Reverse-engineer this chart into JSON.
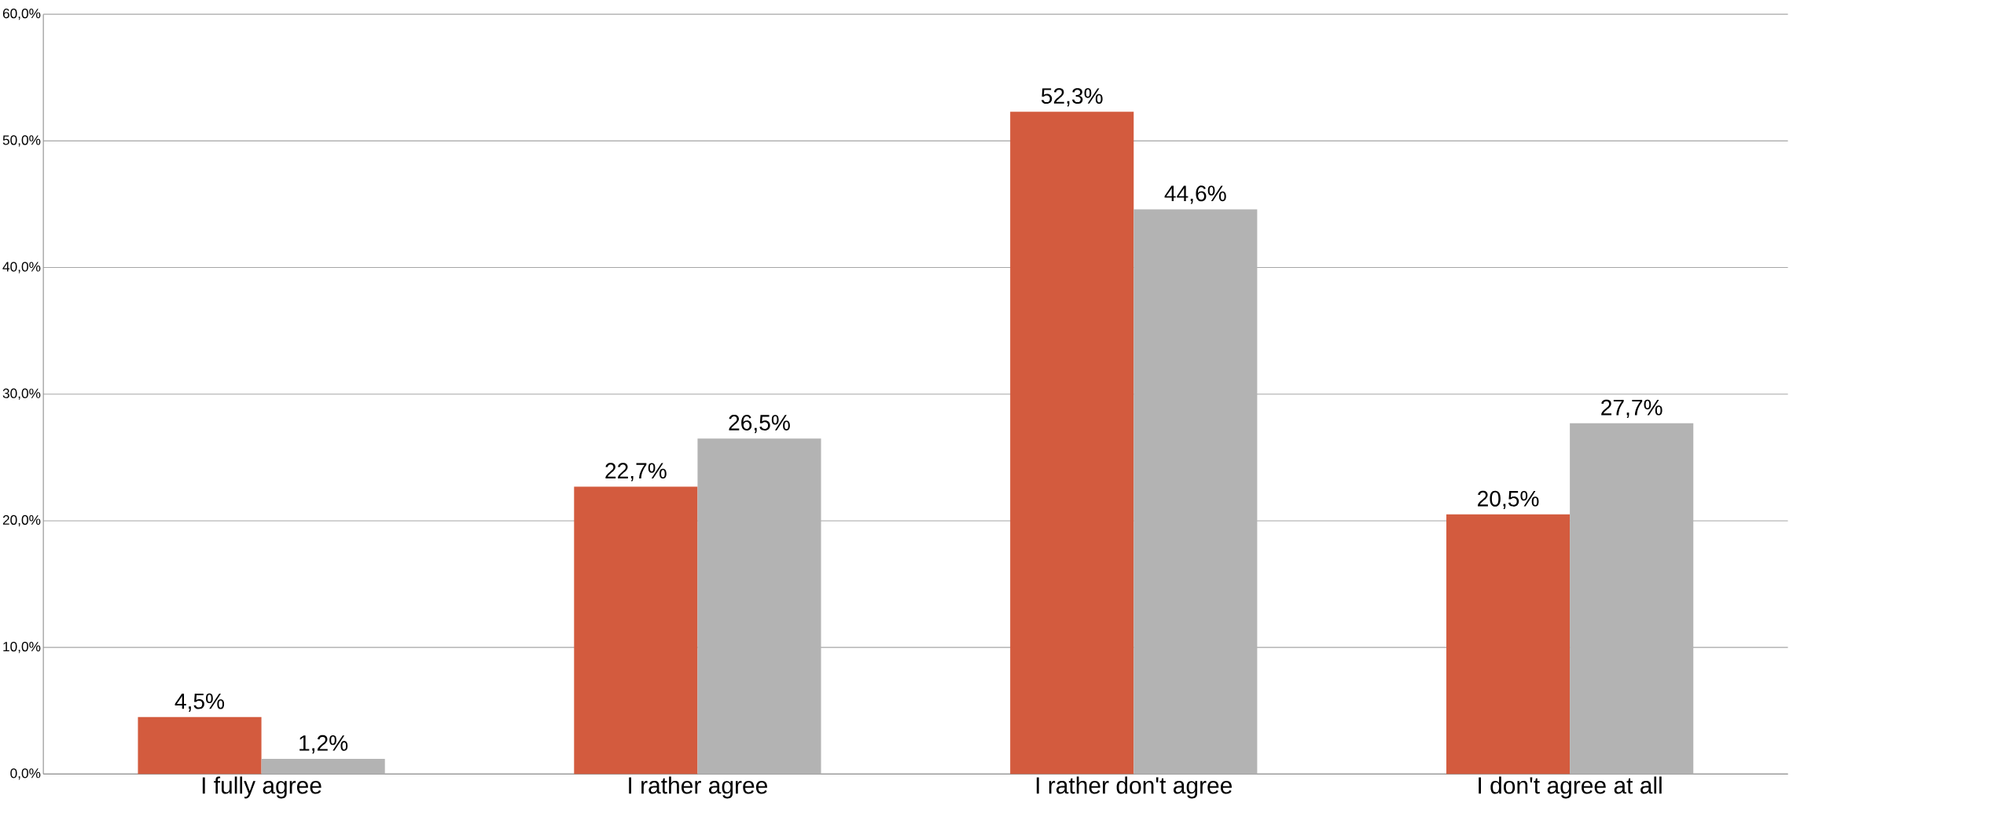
{
  "chart_data": {
    "type": "bar",
    "categories": [
      "I fully agree",
      "I rather agree",
      "I rather don't agree",
      "I don't agree at all"
    ],
    "series": [
      {
        "color": "#d35b3e",
        "values": [
          4.5,
          22.7,
          52.3,
          20.5
        ],
        "value_labels": [
          "4,5%",
          "22,7%",
          "52,3%",
          "20,5%"
        ]
      },
      {
        "color": "#b3b3b3",
        "values": [
          1.2,
          26.5,
          44.6,
          27.7
        ],
        "value_labels": [
          "1,2%",
          "26,5%",
          "44,6%",
          "27,7%"
        ]
      }
    ],
    "ylim": [
      0,
      60
    ],
    "yticks": [
      {
        "value": 0,
        "label": "0,0%"
      },
      {
        "value": 10,
        "label": "10,0%"
      },
      {
        "value": 20,
        "label": "20,0%"
      },
      {
        "value": 30,
        "label": "30,0%"
      },
      {
        "value": 40,
        "label": "40,0%"
      },
      {
        "value": 50,
        "label": "50,0%"
      },
      {
        "value": 60,
        "label": "60,0%"
      }
    ],
    "grid": "y"
  }
}
